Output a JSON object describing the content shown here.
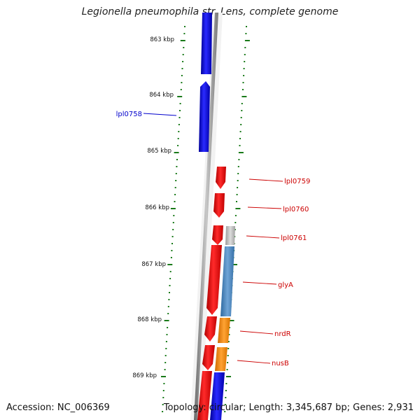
{
  "title": "Legionella pneumophila str. Lens, complete genome",
  "footer": {
    "accession_label": "Accession:",
    "accession": "NC_006369",
    "topology_label": "Topology:",
    "topology": "circular",
    "length_label": "Length:",
    "length": "3,345,687 bp",
    "genes_label": "Genes:",
    "genes": "2,931"
  },
  "axis": {
    "unit": "kbp",
    "ticks": [
      863,
      864,
      865,
      866,
      867,
      868,
      869
    ],
    "tick_labels": [
      "863 kbp",
      "864 kbp",
      "865 kbp",
      "866 kbp",
      "867 kbp",
      "868 kbp",
      "869 kbp"
    ]
  },
  "colors": {
    "forward_gene": "#0000ee",
    "reverse_gene": "#ee0000",
    "ruler": "#1a7a1a",
    "axis_line": "#888888",
    "gene_label_forward": "#0000cc",
    "gene_label_reverse": "#cc0000",
    "cog_grey": "#bbbbbb",
    "cog_steel_blue": "#4a86c0",
    "cog_orange": "#ff8c00",
    "cog_blue": "#0000ee"
  },
  "genes": [
    {
      "label": "",
      "strand": "+"
    },
    {
      "label": "lpl0758",
      "strand": "+"
    },
    {
      "label": "lpl0759",
      "strand": "-"
    },
    {
      "label": "lpl0760",
      "strand": "-"
    },
    {
      "label": "lpl0761",
      "strand": "-"
    },
    {
      "label": "glyA",
      "strand": "-"
    },
    {
      "label": "nrdR",
      "strand": "-"
    },
    {
      "label": "nusB",
      "strand": "-"
    },
    {
      "label": "",
      "strand": "-"
    }
  ]
}
